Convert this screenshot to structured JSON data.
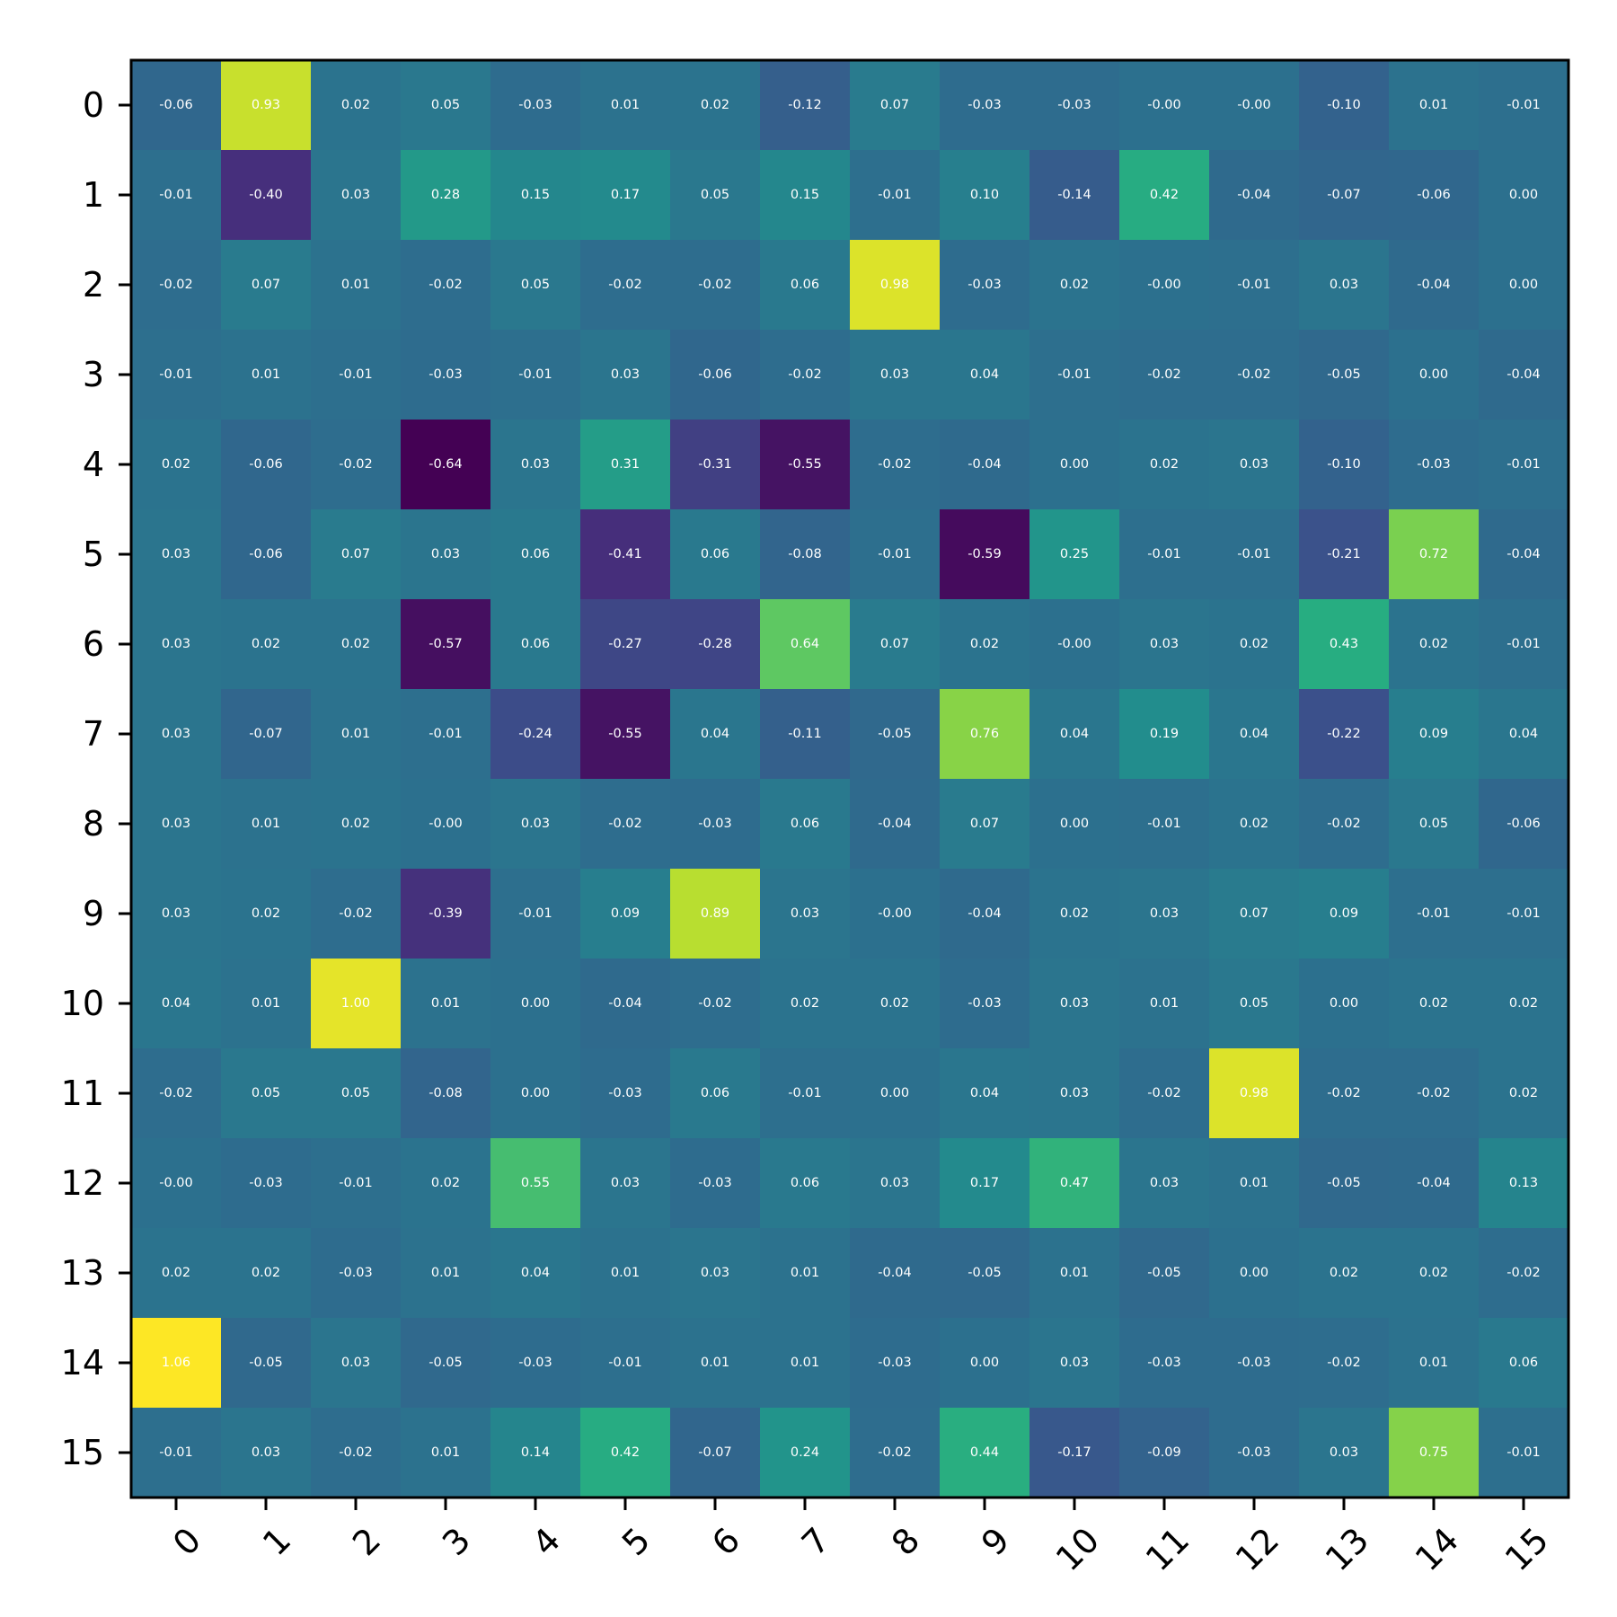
{
  "chart_data": {
    "type": "heatmap",
    "title": "",
    "xlabel": "",
    "ylabel": "",
    "x_labels": [
      "0",
      "1",
      "2",
      "3",
      "4",
      "5",
      "6",
      "7",
      "8",
      "9",
      "10",
      "11",
      "12",
      "13",
      "14",
      "15"
    ],
    "y_labels": [
      "0",
      "1",
      "2",
      "3",
      "4",
      "5",
      "6",
      "7",
      "8",
      "9",
      "10",
      "11",
      "12",
      "13",
      "14",
      "15"
    ],
    "colormap": "viridis",
    "vmin": -0.64,
    "vmax": 1.06,
    "grid": false,
    "values": [
      [
        -0.06,
        0.93,
        0.02,
        0.05,
        -0.03,
        0.01,
        0.02,
        -0.12,
        0.07,
        -0.03,
        -0.03,
        -0.0,
        -0.0,
        -0.1,
        0.01,
        -0.01
      ],
      [
        -0.01,
        -0.4,
        0.03,
        0.28,
        0.15,
        0.17,
        0.05,
        0.15,
        -0.01,
        0.1,
        -0.14,
        0.42,
        -0.04,
        -0.07,
        -0.06,
        0.0
      ],
      [
        -0.02,
        0.07,
        0.01,
        -0.02,
        0.05,
        -0.02,
        -0.02,
        0.06,
        0.98,
        -0.03,
        0.02,
        -0.0,
        -0.01,
        0.03,
        -0.04,
        0.0
      ],
      [
        -0.01,
        0.01,
        -0.01,
        -0.03,
        -0.01,
        0.03,
        -0.06,
        -0.02,
        0.03,
        0.04,
        -0.01,
        -0.02,
        -0.02,
        -0.05,
        0.0,
        -0.04
      ],
      [
        0.02,
        -0.06,
        -0.02,
        -0.64,
        0.03,
        0.31,
        -0.31,
        -0.55,
        -0.02,
        -0.04,
        0.0,
        0.02,
        0.03,
        -0.1,
        -0.03,
        -0.01
      ],
      [
        0.03,
        -0.06,
        0.07,
        0.03,
        0.06,
        -0.41,
        0.06,
        -0.08,
        -0.01,
        -0.59,
        0.25,
        -0.01,
        -0.01,
        -0.21,
        0.72,
        -0.04
      ],
      [
        0.03,
        0.02,
        0.02,
        -0.57,
        0.06,
        -0.27,
        -0.28,
        0.64,
        0.07,
        0.02,
        -0.0,
        0.03,
        0.02,
        0.43,
        0.02,
        -0.01
      ],
      [
        0.03,
        -0.07,
        0.01,
        -0.01,
        -0.24,
        -0.55,
        0.04,
        -0.11,
        -0.05,
        0.76,
        0.04,
        0.19,
        0.04,
        -0.22,
        0.09,
        0.04
      ],
      [
        0.03,
        0.01,
        0.02,
        -0.0,
        0.03,
        -0.02,
        -0.03,
        0.06,
        -0.04,
        0.07,
        0.0,
        -0.01,
        0.02,
        -0.02,
        0.05,
        -0.06
      ],
      [
        0.03,
        0.02,
        -0.02,
        -0.39,
        -0.01,
        0.09,
        0.89,
        0.03,
        -0.0,
        -0.04,
        0.02,
        0.03,
        0.07,
        0.09,
        -0.01,
        -0.01
      ],
      [
        0.04,
        0.01,
        1.0,
        0.01,
        0.0,
        -0.04,
        -0.02,
        0.02,
        0.02,
        -0.03,
        0.03,
        0.01,
        0.05,
        0.0,
        0.02,
        0.02
      ],
      [
        -0.02,
        0.05,
        0.05,
        -0.08,
        0.0,
        -0.03,
        0.06,
        -0.01,
        0.0,
        0.04,
        0.03,
        -0.02,
        0.98,
        -0.02,
        -0.02,
        0.02
      ],
      [
        -0.0,
        -0.03,
        -0.01,
        0.02,
        0.55,
        0.03,
        -0.03,
        0.06,
        0.03,
        0.17,
        0.47,
        0.03,
        0.01,
        -0.05,
        -0.04,
        0.13
      ],
      [
        0.02,
        0.02,
        -0.03,
        0.01,
        0.04,
        0.01,
        0.03,
        0.01,
        -0.04,
        -0.05,
        0.01,
        -0.05,
        0.0,
        0.02,
        0.02,
        -0.02
      ],
      [
        1.06,
        -0.05,
        0.03,
        -0.05,
        -0.03,
        -0.01,
        0.01,
        0.01,
        -0.03,
        0.0,
        0.03,
        -0.03,
        -0.03,
        -0.02,
        0.01,
        0.06
      ],
      [
        -0.01,
        0.03,
        -0.02,
        0.01,
        0.14,
        0.42,
        -0.07,
        0.24,
        -0.02,
        0.44,
        -0.17,
        -0.09,
        -0.03,
        0.03,
        0.75,
        -0.01
      ]
    ],
    "cell_labels": [
      [
        "-0.06",
        "0.93",
        "0.02",
        "0.05",
        "-0.03",
        "0.01",
        "0.02",
        "-0.12",
        "0.07",
        "-0.03",
        "-0.03",
        "-0.00",
        "-0.00",
        "-0.10",
        "0.01",
        "-0.01"
      ],
      [
        "-0.01",
        "-0.40",
        "0.03",
        "0.28",
        "0.15",
        "0.17",
        "0.05",
        "0.15",
        "-0.01",
        "0.10",
        "-0.14",
        "0.42",
        "-0.04",
        "-0.07",
        "-0.06",
        "0.00"
      ],
      [
        "-0.02",
        "0.07",
        "0.01",
        "-0.02",
        "0.05",
        "-0.02",
        "-0.02",
        "0.06",
        "0.98",
        "-0.03",
        "0.02",
        "-0.00",
        "-0.01",
        "0.03",
        "-0.04",
        "0.00"
      ],
      [
        "-0.01",
        "0.01",
        "-0.01",
        "-0.03",
        "-0.01",
        "0.03",
        "-0.06",
        "-0.02",
        "0.03",
        "0.04",
        "-0.01",
        "-0.02",
        "-0.02",
        "-0.05",
        "0.00",
        "-0.04"
      ],
      [
        "0.02",
        "-0.06",
        "-0.02",
        "-0.64",
        "0.03",
        "0.31",
        "-0.31",
        "-0.55",
        "-0.02",
        "-0.04",
        "0.00",
        "0.02",
        "0.03",
        "-0.10",
        "-0.03",
        "-0.01"
      ],
      [
        "0.03",
        "-0.06",
        "0.07",
        "0.03",
        "0.06",
        "-0.41",
        "0.06",
        "-0.08",
        "-0.01",
        "-0.59",
        "0.25",
        "-0.01",
        "-0.01",
        "-0.21",
        "0.72",
        "-0.04"
      ],
      [
        "0.03",
        "0.02",
        "0.02",
        "-0.57",
        "0.06",
        "-0.27",
        "-0.28",
        "0.64",
        "0.07",
        "0.02",
        "-0.00",
        "0.03",
        "0.02",
        "0.43",
        "0.02",
        "-0.01"
      ],
      [
        "0.03",
        "-0.07",
        "0.01",
        "-0.01",
        "-0.24",
        "-0.55",
        "0.04",
        "-0.11",
        "-0.05",
        "0.76",
        "0.04",
        "0.19",
        "0.04",
        "-0.22",
        "0.09",
        "0.04"
      ],
      [
        "0.03",
        "0.01",
        "0.02",
        "-0.00",
        "0.03",
        "-0.02",
        "-0.03",
        "0.06",
        "-0.04",
        "0.07",
        "0.00",
        "-0.01",
        "0.02",
        "-0.02",
        "0.05",
        "-0.06"
      ],
      [
        "0.03",
        "0.02",
        "-0.02",
        "-0.39",
        "-0.01",
        "0.09",
        "0.89",
        "0.03",
        "-0.00",
        "-0.04",
        "0.02",
        "0.03",
        "0.07",
        "0.09",
        "-0.01",
        "-0.01"
      ],
      [
        "0.04",
        "0.01",
        "1.00",
        "0.01",
        "0.00",
        "-0.04",
        "-0.02",
        "0.02",
        "0.02",
        "-0.03",
        "0.03",
        "0.01",
        "0.05",
        "0.00",
        "0.02",
        "0.02"
      ],
      [
        "-0.02",
        "0.05",
        "0.05",
        "-0.08",
        "0.00",
        "-0.03",
        "0.06",
        "-0.01",
        "0.00",
        "0.04",
        "0.03",
        "-0.02",
        "0.98",
        "-0.02",
        "-0.02",
        "0.02"
      ],
      [
        "-0.00",
        "-0.03",
        "-0.01",
        "0.02",
        "0.55",
        "0.03",
        "-0.03",
        "0.06",
        "0.03",
        "0.17",
        "0.47",
        "0.03",
        "0.01",
        "-0.05",
        "-0.04",
        "0.13"
      ],
      [
        "0.02",
        "0.02",
        "-0.03",
        "0.01",
        "0.04",
        "0.01",
        "0.03",
        "0.01",
        "-0.04",
        "-0.05",
        "0.01",
        "-0.05",
        "0.00",
        "0.02",
        "0.02",
        "-0.02"
      ],
      [
        "1.06",
        "-0.05",
        "0.03",
        "-0.05",
        "-0.03",
        "-0.01",
        "0.01",
        "0.01",
        "-0.03",
        "0.00",
        "0.03",
        "-0.03",
        "-0.03",
        "-0.02",
        "0.01",
        "0.06"
      ],
      [
        "-0.01",
        "0.03",
        "-0.02",
        "0.01",
        "0.14",
        "0.42",
        "-0.07",
        "0.24",
        "-0.02",
        "0.44",
        "-0.17",
        "-0.09",
        "-0.03",
        "0.03",
        "0.75",
        "-0.01"
      ]
    ]
  }
}
